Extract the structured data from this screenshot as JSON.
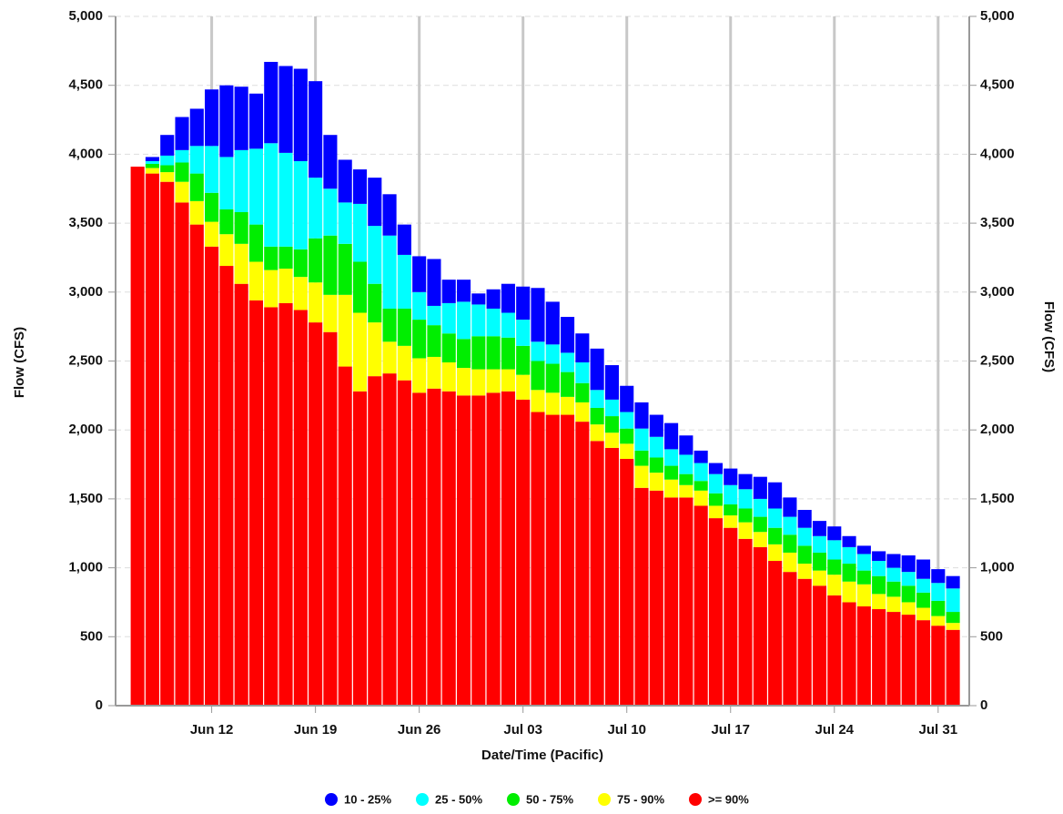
{
  "chart_data": {
    "type": "stacked_bar",
    "xlabel": "Date/Time (Pacific)",
    "ylabel": "Flow (CFS)",
    "y2label": "Flow (CFS)",
    "categories": [
      null,
      null,
      null,
      null,
      null,
      "Jun 12",
      null,
      null,
      null,
      null,
      null,
      null,
      "Jun 19",
      null,
      null,
      null,
      null,
      null,
      null,
      "Jun 26",
      null,
      null,
      null,
      null,
      null,
      null,
      "Jul 03",
      null,
      null,
      null,
      null,
      null,
      null,
      "Jul 10",
      null,
      null,
      null,
      null,
      null,
      null,
      "Jul 17",
      null,
      null,
      null,
      null,
      null,
      null,
      "Jul 24",
      null,
      null,
      null,
      null,
      null,
      null,
      "Jul 31",
      null
    ],
    "ylim": [
      0,
      5000
    ],
    "yticks": [
      0,
      500,
      {
        "value": 1000,
        "label": "1,000"
      },
      {
        "value": 1500,
        "label": "1,500"
      },
      {
        "value": 2000,
        "label": "2,000"
      },
      {
        "value": 2500,
        "label": "2,500"
      },
      {
        "value": 3000,
        "label": "3,000"
      },
      {
        "value": 3500,
        "label": "3,500"
      },
      {
        "value": 4000,
        "label": "4,000"
      },
      {
        "value": 4500,
        "label": "4,500"
      },
      {
        "value": 5000,
        "label": "5,000"
      }
    ],
    "y2lim": [
      0,
      5000
    ],
    "y2ticks": [
      0,
      500,
      {
        "value": 1000,
        "label": "1,000"
      },
      {
        "value": 1500,
        "label": "1,500"
      },
      {
        "value": 2000,
        "label": "2,000"
      },
      {
        "value": 2500,
        "label": "2,500"
      },
      {
        "value": 3000,
        "label": "3,000"
      },
      {
        "value": 3500,
        "label": "3,500"
      },
      {
        "value": 4000,
        "label": "4,000"
      },
      {
        "value": 4500,
        "label": "4,500"
      },
      {
        "value": 5000,
        "label": "5,000"
      }
    ],
    "grid": true,
    "legend": "bottom",
    "series": [
      {
        "name": "10 - 25%",
        "color": "#0000ff",
        "values": [
          0,
          30,
          150,
          240,
          270,
          410,
          520,
          460,
          400,
          590,
          630,
          670,
          700,
          390,
          310,
          250,
          350,
          300,
          220,
          260,
          340,
          170,
          160,
          80,
          140,
          210,
          240,
          390,
          310,
          260,
          210,
          300,
          250,
          190,
          190,
          160,
          190,
          140,
          90,
          80,
          120,
          110,
          160,
          190,
          140,
          130,
          110,
          100,
          80,
          60,
          70,
          100,
          120,
          140,
          100,
          90
        ]
      },
      {
        "name": "25 - 50%",
        "color": "#00ffff",
        "values": [
          0,
          20,
          70,
          90,
          200,
          340,
          380,
          450,
          550,
          750,
          680,
          640,
          440,
          340,
          300,
          420,
          420,
          530,
          390,
          200,
          140,
          220,
          270,
          230,
          200,
          180,
          190,
          140,
          140,
          140,
          150,
          130,
          120,
          120,
          160,
          150,
          120,
          140,
          130,
          140,
          140,
          140,
          130,
          140,
          130,
          130,
          120,
          140,
          120,
          120,
          110,
          100,
          100,
          100,
          130,
          170
        ]
      },
      {
        "name": "50 - 75%",
        "color": "#00ee00",
        "values": [
          0,
          30,
          50,
          140,
          200,
          210,
          180,
          230,
          270,
          170,
          160,
          200,
          320,
          430,
          370,
          370,
          280,
          240,
          270,
          280,
          230,
          210,
          210,
          240,
          240,
          230,
          210,
          210,
          210,
          180,
          140,
          120,
          120,
          110,
          110,
          110,
          100,
          80,
          70,
          90,
          80,
          100,
          110,
          120,
          130,
          130,
          130,
          110,
          130,
          100,
          130,
          110,
          120,
          110,
          110,
          80
        ]
      },
      {
        "name": "75 - 90%",
        "color": "#ffff00",
        "values": [
          0,
          40,
          70,
          150,
          170,
          180,
          230,
          290,
          280,
          270,
          250,
          240,
          290,
          270,
          520,
          570,
          390,
          230,
          250,
          250,
          230,
          210,
          200,
          190,
          170,
          160,
          180,
          160,
          160,
          130,
          140,
          120,
          110,
          110,
          160,
          130,
          130,
          90,
          110,
          90,
          90,
          120,
          110,
          120,
          140,
          110,
          110,
          150,
          150,
          160,
          110,
          110,
          90,
          90,
          70,
          50
        ]
      },
      {
        "name": ">= 90%",
        "color": "#ff0000",
        "values": [
          3910,
          3860,
          3800,
          3650,
          3490,
          3330,
          3190,
          3060,
          2940,
          2890,
          2920,
          2870,
          2780,
          2710,
          2460,
          2280,
          2390,
          2410,
          2360,
          2270,
          2300,
          2280,
          2250,
          2250,
          2270,
          2280,
          2220,
          2130,
          2110,
          2110,
          2060,
          1920,
          1870,
          1790,
          1580,
          1560,
          1510,
          1510,
          1450,
          1360,
          1290,
          1210,
          1150,
          1050,
          970,
          920,
          870,
          800,
          750,
          720,
          700,
          680,
          660,
          620,
          580,
          550
        ]
      }
    ]
  }
}
